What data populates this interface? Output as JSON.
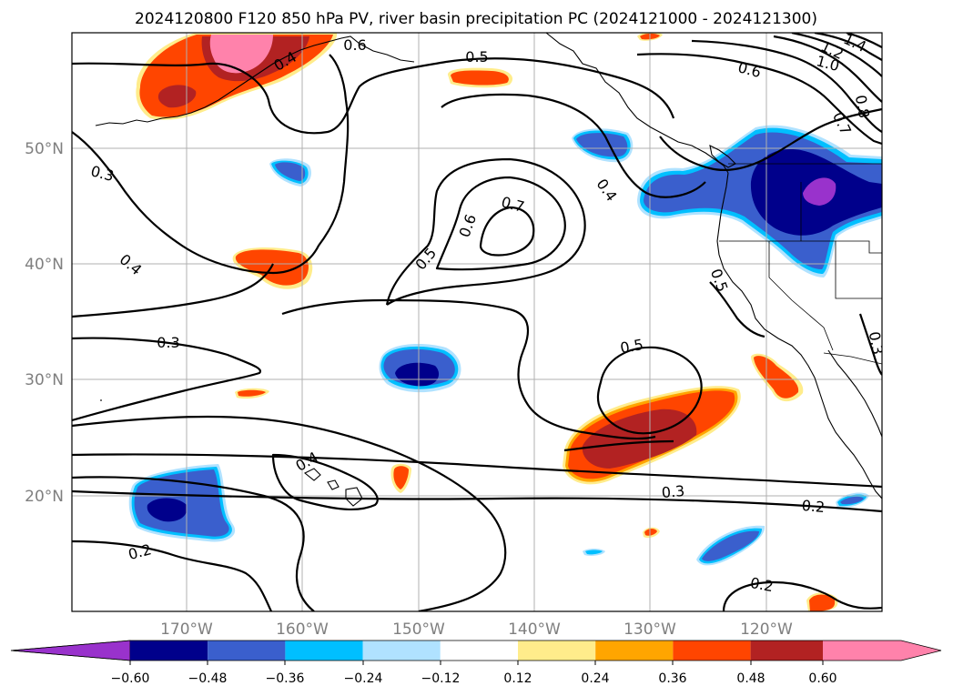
{
  "title": "2024120800 F120 850 hPa PV, river basin precipitation PC (2024121000 - 2024121300)",
  "map": {
    "lon_ticks": [
      "170°W",
      "160°W",
      "150°W",
      "140°W",
      "130°W",
      "120°W"
    ],
    "lat_ticks": [
      "50°N",
      "40°N",
      "30°N",
      "20°N"
    ],
    "grid": true
  },
  "contour_labels": [
    "0.6",
    "0.4",
    "0.5",
    "1.4",
    "1.2",
    "1.0",
    "0.6",
    "0.8",
    "0.7",
    "0.3",
    "0.4",
    "0.7",
    "0.6",
    "0.5",
    "0.4",
    "0.5",
    "0.3",
    "0.5",
    "0.3",
    "0.4",
    "0.3",
    "0.2",
    "0.2",
    "0.2"
  ],
  "colorbar": {
    "ticks": [
      "−0.60",
      "−0.48",
      "−0.36",
      "−0.24",
      "−0.12",
      "0.12",
      "0.24",
      "0.36",
      "0.48",
      "0.60"
    ],
    "colors": {
      "c0": "#9932cc",
      "c1": "#00008b",
      "c2": "#3a5fcd",
      "c3": "#00bfff",
      "c4": "#b0e2ff",
      "c5": "#ffffff",
      "c6": "#ffec8b",
      "c7": "#ffa500",
      "c8": "#ff4500",
      "c9": "#b22222",
      "c10": "#ff82ab"
    }
  }
}
